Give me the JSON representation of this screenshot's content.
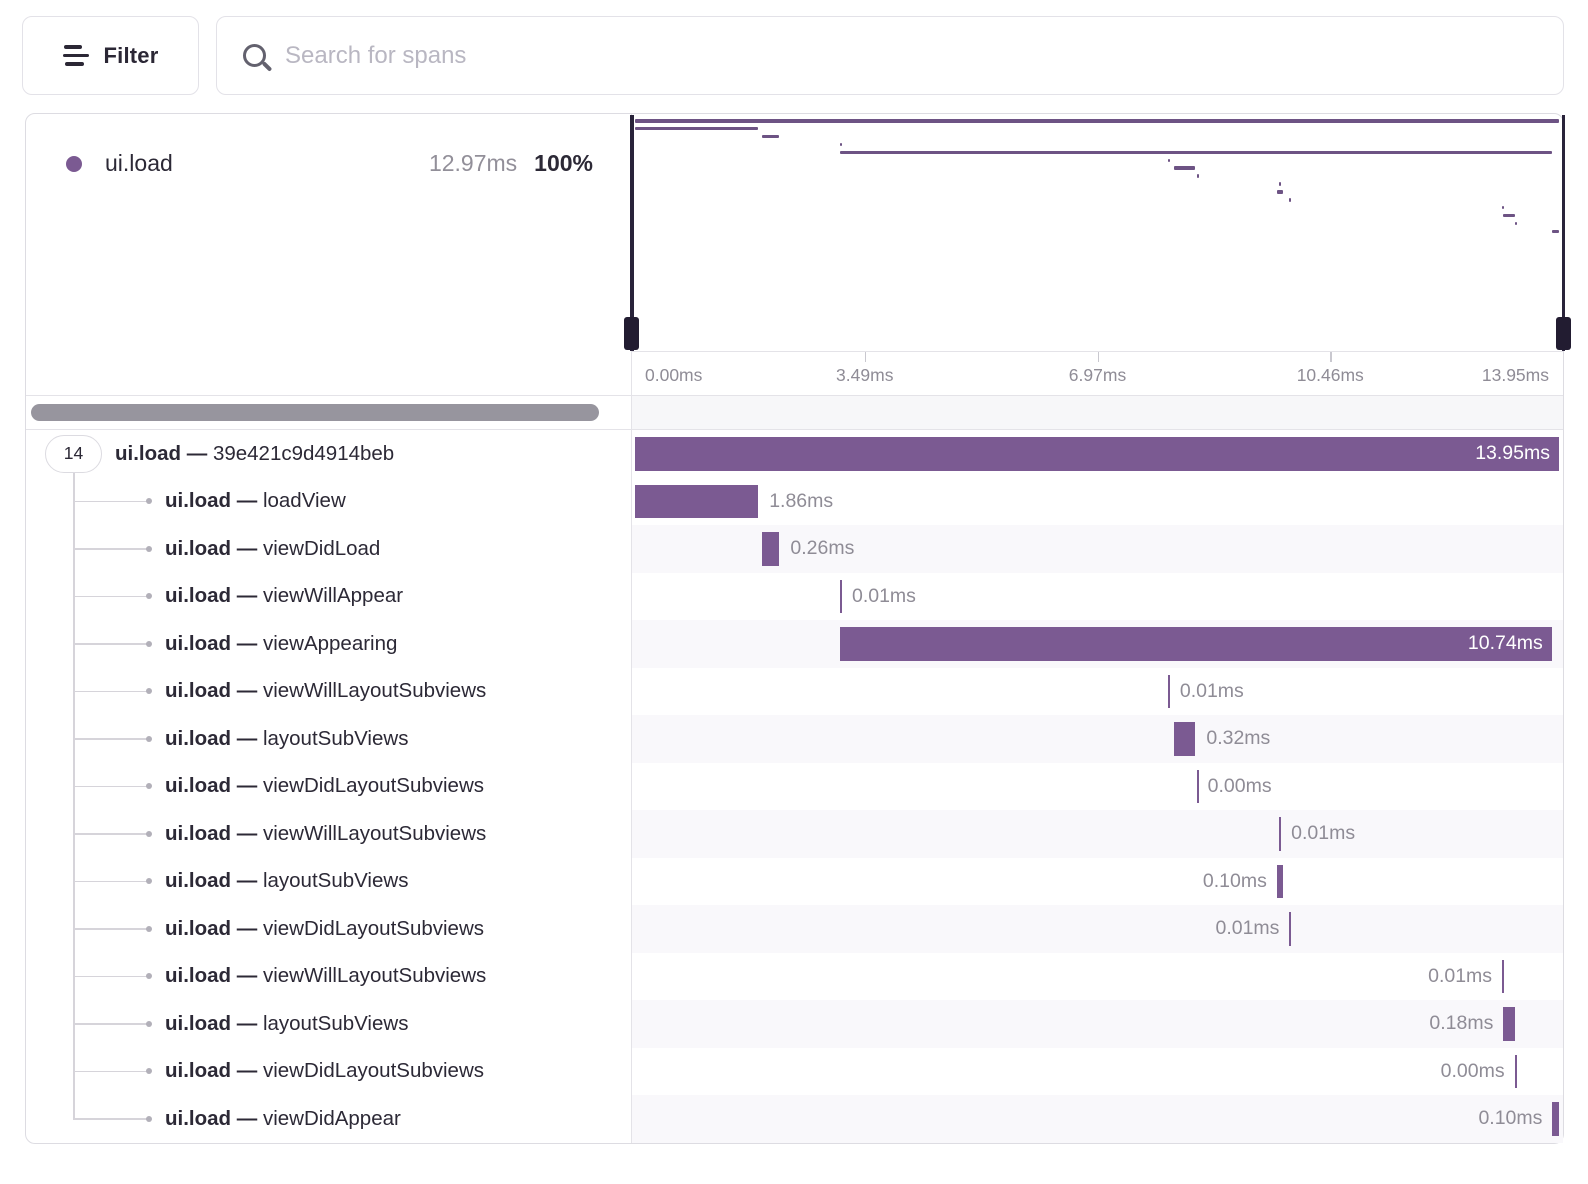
{
  "toolbar": {
    "filter_label": "Filter",
    "search_placeholder": "Search for spans"
  },
  "summary": {
    "op": "ui.load",
    "duration": "12.97ms",
    "percent": "100%"
  },
  "axis": {
    "tick_labels": [
      "0.00ms",
      "3.49ms",
      "6.97ms",
      "10.46ms",
      "13.95ms"
    ]
  },
  "timeline": {
    "total_ms": 13.95
  },
  "tree": {
    "root_child_count": "14",
    "separator": "—",
    "rows": [
      {
        "op": "ui.load",
        "name": "39e421c9d4914beb",
        "duration_label": "13.95ms",
        "start_ms": 0.0,
        "duration_ms": 13.95,
        "label_placement": "inside",
        "is_root": true
      },
      {
        "op": "ui.load",
        "name": "loadView",
        "duration_label": "1.86ms",
        "start_ms": 0.0,
        "duration_ms": 1.86,
        "label_placement": "after"
      },
      {
        "op": "ui.load",
        "name": "viewDidLoad",
        "duration_label": "0.26ms",
        "start_ms": 1.92,
        "duration_ms": 0.26,
        "label_placement": "after"
      },
      {
        "op": "ui.load",
        "name": "viewWillAppear",
        "duration_label": "0.01ms",
        "start_ms": 3.1,
        "duration_ms": 0.01,
        "label_placement": "after"
      },
      {
        "op": "ui.load",
        "name": "viewAppearing",
        "duration_label": "10.74ms",
        "start_ms": 3.1,
        "duration_ms": 10.74,
        "label_placement": "inside"
      },
      {
        "op": "ui.load",
        "name": "viewWillLayoutSubviews",
        "duration_label": "0.01ms",
        "start_ms": 8.05,
        "duration_ms": 0.01,
        "label_placement": "after"
      },
      {
        "op": "ui.load",
        "name": "layoutSubViews",
        "duration_label": "0.32ms",
        "start_ms": 8.14,
        "duration_ms": 0.32,
        "label_placement": "after"
      },
      {
        "op": "ui.load",
        "name": "viewDidLayoutSubviews",
        "duration_label": "0.00ms",
        "start_ms": 8.48,
        "duration_ms": 0.0,
        "label_placement": "after"
      },
      {
        "op": "ui.load",
        "name": "viewWillLayoutSubviews",
        "duration_label": "0.01ms",
        "start_ms": 9.73,
        "duration_ms": 0.01,
        "label_placement": "after"
      },
      {
        "op": "ui.load",
        "name": "layoutSubViews",
        "duration_label": "0.10ms",
        "start_ms": 9.69,
        "duration_ms": 0.1,
        "label_placement": "before"
      },
      {
        "op": "ui.load",
        "name": "viewDidLayoutSubviews",
        "duration_label": "0.01ms",
        "start_ms": 9.88,
        "duration_ms": 0.01,
        "label_placement": "before"
      },
      {
        "op": "ui.load",
        "name": "viewWillLayoutSubviews",
        "duration_label": "0.01ms",
        "start_ms": 13.09,
        "duration_ms": 0.01,
        "label_placement": "before"
      },
      {
        "op": "ui.load",
        "name": "layoutSubViews",
        "duration_label": "0.18ms",
        "start_ms": 13.11,
        "duration_ms": 0.18,
        "label_placement": "before"
      },
      {
        "op": "ui.load",
        "name": "viewDidLayoutSubviews",
        "duration_label": "0.00ms",
        "start_ms": 13.28,
        "duration_ms": 0.0,
        "label_placement": "before"
      },
      {
        "op": "ui.load",
        "name": "viewDidAppear",
        "duration_label": "0.10ms",
        "start_ms": 13.85,
        "duration_ms": 0.1,
        "label_placement": "before"
      }
    ]
  },
  "colors": {
    "span_bar": "#7b5a92",
    "minimap_bar": "#6d5384",
    "minimap_handle": "#251f35",
    "accent_dot": "#7b5a92"
  }
}
